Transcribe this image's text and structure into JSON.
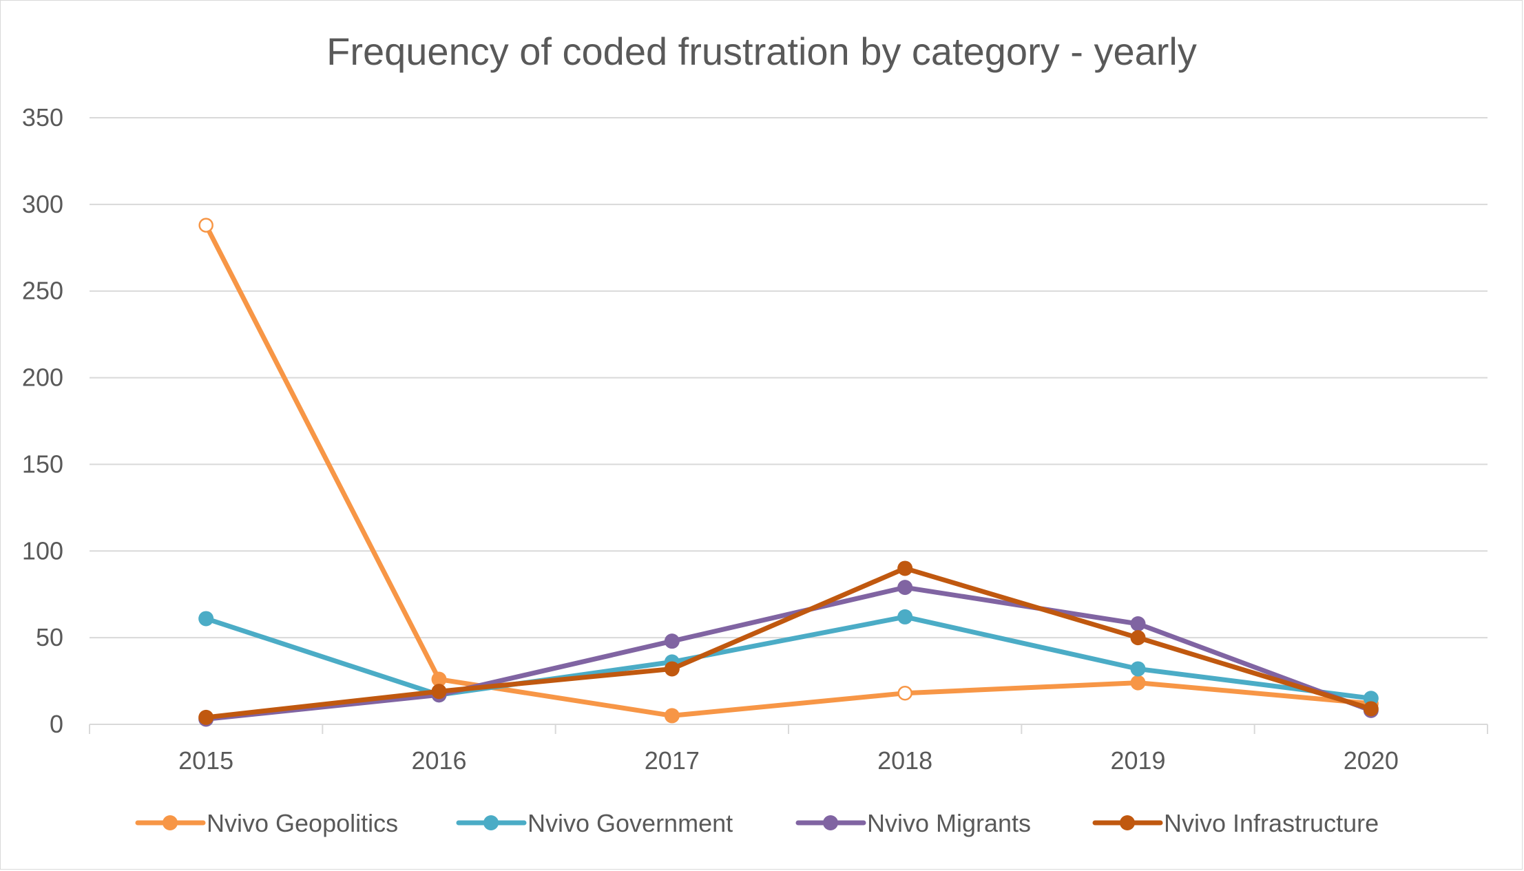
{
  "chart_data": {
    "type": "line",
    "title": "Frequency of coded frustration by category - yearly",
    "xlabel": "",
    "ylabel": "",
    "categories": [
      "2015",
      "2016",
      "2017",
      "2018",
      "2019",
      "2020"
    ],
    "ylim": [
      0,
      350
    ],
    "yticks": [
      "0",
      "50",
      "100",
      "150",
      "200",
      "250",
      "300",
      "350"
    ],
    "grid": true,
    "legend_position": "bottom",
    "series": [
      {
        "name": "Nvivo Geopolitics",
        "color": "#f79646",
        "values": [
          288,
          26,
          5,
          18,
          24,
          12
        ],
        "hollow_points": [
          0,
          3
        ]
      },
      {
        "name": "Nvivo Government",
        "color": "#4bacc6",
        "values": [
          61,
          17,
          36,
          62,
          32,
          15
        ]
      },
      {
        "name": "Nvivo Migrants",
        "color": "#8064a2",
        "values": [
          3,
          17,
          48,
          79,
          58,
          8
        ]
      },
      {
        "name": "Nvivo Infrastructure",
        "color": "#c0580f",
        "values": [
          4,
          19,
          32,
          90,
          50,
          9
        ]
      }
    ]
  }
}
